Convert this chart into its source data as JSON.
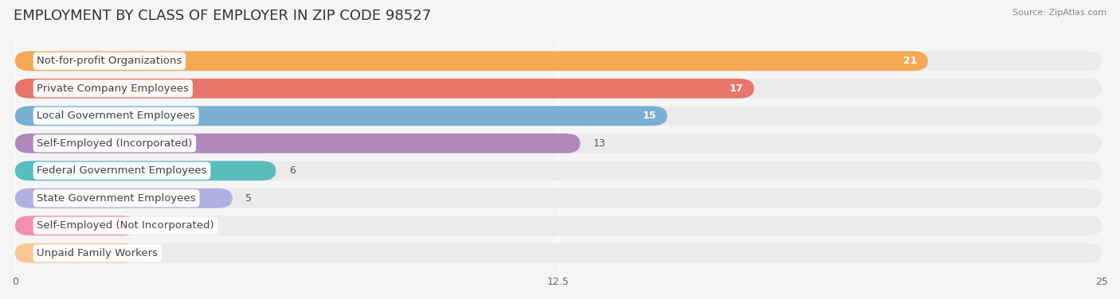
{
  "title": "EMPLOYMENT BY CLASS OF EMPLOYER IN ZIP CODE 98527",
  "source": "Source: ZipAtlas.com",
  "categories": [
    "Not-for-profit Organizations",
    "Private Company Employees",
    "Local Government Employees",
    "Self-Employed (Incorporated)",
    "Federal Government Employees",
    "State Government Employees",
    "Self-Employed (Not Incorporated)",
    "Unpaid Family Workers"
  ],
  "values": [
    21,
    17,
    15,
    13,
    6,
    5,
    0,
    0
  ],
  "bar_colors": [
    "#f5a955",
    "#e8756a",
    "#7bafd4",
    "#b088bc",
    "#5bbcbe",
    "#b0b0e0",
    "#f48fb1",
    "#f7c896"
  ],
  "xlim": [
    0,
    25
  ],
  "xticks": [
    0,
    12.5,
    25
  ],
  "bg_color": "#f5f5f5",
  "row_bg_color": "#ebebeb",
  "title_fontsize": 13,
  "label_fontsize": 9.5,
  "value_fontsize": 9
}
